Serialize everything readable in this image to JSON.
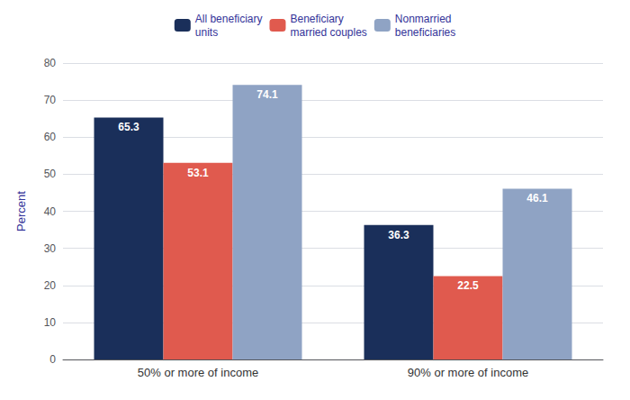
{
  "chart_data": {
    "type": "bar",
    "categories": [
      "50% or more of income",
      "90% or more of income"
    ],
    "series": [
      {
        "name": "All beneficiary\nunits",
        "values": [
          65.3,
          36.3
        ],
        "color": "#1a2f5a"
      },
      {
        "name": "Beneficiary\nmarried couples",
        "values": [
          53.1,
          22.5
        ],
        "color": "#e05a4e"
      },
      {
        "name": "Nonmarried\nbeneficiaries",
        "values": [
          74.1,
          46.1
        ],
        "color": "#8fa3c4"
      }
    ],
    "ylabel": "Percent",
    "ylim": [
      0,
      80
    ],
    "yticks": [
      0,
      10,
      20,
      30,
      40,
      50,
      60,
      70,
      80
    ],
    "grid": true,
    "legend": "top",
    "data_labels": true
  }
}
